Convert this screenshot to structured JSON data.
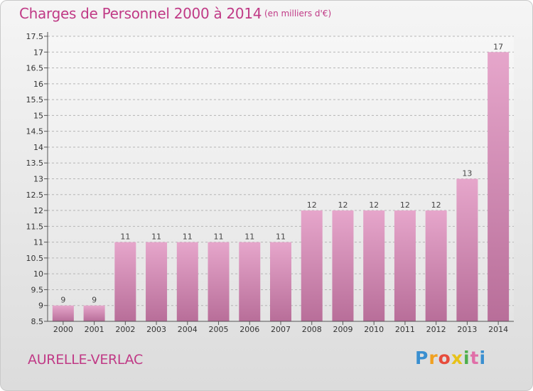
{
  "header": {
    "title": "Charges de Personnel 2000 à 2014",
    "units": "(en milliers d'€)"
  },
  "footer": {
    "commune": "AURELLE-VERLAC",
    "logo_letters": [
      "P",
      "r",
      "o",
      "x",
      "i",
      "t",
      "i"
    ],
    "logo_colors": [
      "#3a8fd0",
      "#f0a020",
      "#e74c3c",
      "#e7c21a",
      "#4cae4c",
      "#e06fa8",
      "#3a8fd0"
    ]
  },
  "colors": {
    "bar_top": "#e6a6cb",
    "bar_bottom": "#b86e99",
    "accent": "#c03a86",
    "grid": "#b5b5b5"
  },
  "chart_data": {
    "type": "bar",
    "title": "Charges de Personnel 2000 à 2014",
    "subtitle": "(en milliers d'€)",
    "categories": [
      "2000",
      "2001",
      "2002",
      "2003",
      "2004",
      "2005",
      "2006",
      "2007",
      "2008",
      "2009",
      "2010",
      "2011",
      "2012",
      "2013",
      "2014"
    ],
    "values": [
      9,
      9,
      11,
      11,
      11,
      11,
      11,
      11,
      12,
      12,
      12,
      12,
      12,
      13,
      17
    ],
    "ylim": [
      8.5,
      17.5
    ],
    "yticks": [
      "8.5",
      "9",
      "9.5",
      "10",
      "10.5",
      "11",
      "11.5",
      "12",
      "12.5",
      "13",
      "13.5",
      "14",
      "14.5",
      "15",
      "15.5",
      "16",
      "16.5",
      "17",
      "17.5"
    ],
    "grid": true
  }
}
